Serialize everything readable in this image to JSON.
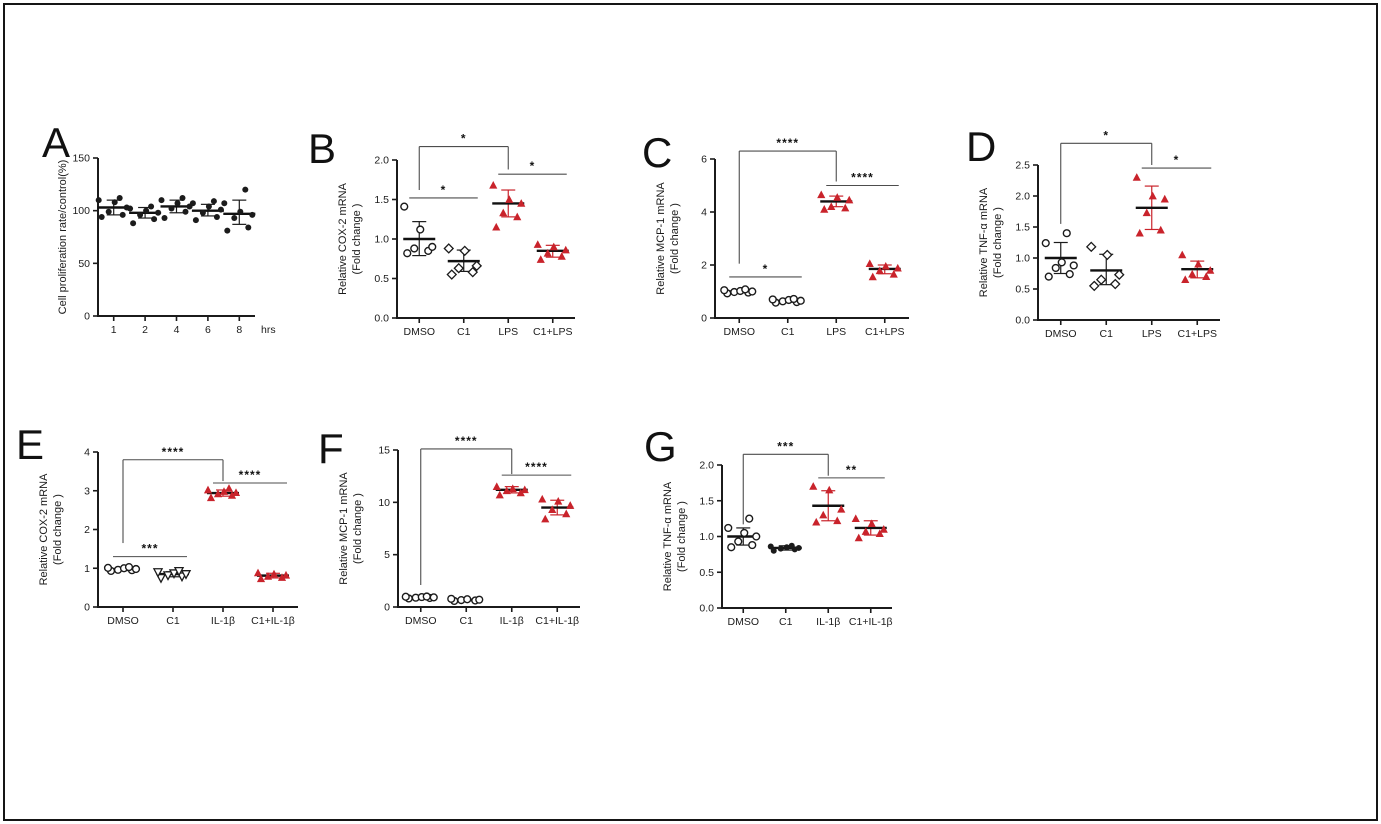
{
  "figure": {
    "background": "#ffffff",
    "frame_color": "#151515"
  },
  "colors": {
    "axis": "#1b1b1b",
    "point_black": "#1b1b1b",
    "point_red": "#c9232b",
    "mean_line": "#111111",
    "sig_line": "#4d4d4d",
    "star": "#111111"
  },
  "chart_data": [
    {
      "panel": "A",
      "type": "scatter",
      "ylabel_lines": [
        "Cell proliferation rate/control(%)"
      ],
      "ylim": [
        0,
        150
      ],
      "yticks": [
        0,
        50,
        100,
        150
      ],
      "ytick_labels": [
        "0",
        "50",
        "100",
        "150"
      ],
      "categories": [
        "1",
        "2",
        "4",
        "6",
        "8"
      ],
      "x_suffix": "hrs",
      "groups": [
        {
          "label": "1",
          "marker": "circle-filled",
          "color": "black",
          "points": [
            94,
            96,
            99,
            103,
            108,
            110,
            112
          ],
          "mean": 103,
          "err": [
            96,
            110
          ]
        },
        {
          "label": "2",
          "marker": "circle-filled",
          "color": "black",
          "points": [
            88,
            92,
            96,
            98,
            100,
            102,
            104
          ],
          "mean": 98,
          "err": [
            93,
            103
          ]
        },
        {
          "label": "4",
          "marker": "circle-filled",
          "color": "black",
          "points": [
            93,
            99,
            102,
            104,
            107,
            110,
            112
          ],
          "mean": 104,
          "err": [
            98,
            110
          ]
        },
        {
          "label": "6",
          "marker": "circle-filled",
          "color": "black",
          "points": [
            91,
            94,
            98,
            101,
            104,
            107,
            109
          ],
          "mean": 100,
          "err": [
            95,
            106
          ]
        },
        {
          "label": "8",
          "marker": "circle-filled",
          "color": "black",
          "points": [
            81,
            84,
            93,
            96,
            99,
            107,
            120
          ],
          "mean": 97,
          "err": [
            87,
            110
          ]
        }
      ],
      "significance": []
    },
    {
      "panel": "B",
      "type": "scatter",
      "ylabel_lines": [
        "Relative COX-2 mRNA",
        "(Fold change )"
      ],
      "ylim": [
        0,
        2.0
      ],
      "yticks": [
        0,
        0.5,
        1.0,
        1.5,
        2.0
      ],
      "ytick_labels": [
        "0.0",
        "0.5",
        "1.0",
        "1.5",
        "2.0"
      ],
      "categories": [
        "DMSO",
        "C1",
        "LPS",
        "C1+LPS"
      ],
      "x_suffix": "",
      "groups": [
        {
          "label": "DMSO",
          "marker": "circle-open",
          "color": "black",
          "points": [
            0.82,
            0.85,
            0.88,
            0.9,
            1.12,
            1.41
          ],
          "mean": 1.0,
          "err": [
            0.79,
            1.22
          ]
        },
        {
          "label": "C1",
          "marker": "diamond-open",
          "color": "black",
          "points": [
            0.55,
            0.58,
            0.63,
            0.66,
            0.85,
            0.88
          ],
          "mean": 0.72,
          "err": [
            0.59,
            0.86
          ]
        },
        {
          "label": "LPS",
          "marker": "triangle-filled",
          "color": "red",
          "points": [
            1.15,
            1.28,
            1.33,
            1.45,
            1.5,
            1.68
          ],
          "mean": 1.45,
          "err": [
            1.28,
            1.62
          ]
        },
        {
          "label": "C1+LPS",
          "marker": "triangle-filled",
          "color": "red",
          "points": [
            0.74,
            0.78,
            0.82,
            0.86,
            0.9,
            0.93
          ],
          "mean": 0.85,
          "err": [
            0.77,
            0.92
          ]
        }
      ],
      "significance": [
        {
          "a": 0,
          "b": 1,
          "y": 1.52,
          "label": "*"
        },
        {
          "a": 0,
          "b": 2,
          "y": 2.17,
          "da": 1.62,
          "db": 1.88,
          "label": "*"
        },
        {
          "a": 2,
          "b": 3,
          "y": 1.82,
          "label": "*"
        }
      ]
    },
    {
      "panel": "C",
      "type": "scatter",
      "ylabel_lines": [
        "Relative MCP-1 mRNA",
        "(Fold change )"
      ],
      "ylim": [
        0,
        6
      ],
      "yticks": [
        0,
        2,
        4,
        6
      ],
      "ytick_labels": [
        "0",
        "2",
        "4",
        "6"
      ],
      "categories": [
        "DMSO",
        "C1",
        "LPS",
        "C1+LPS"
      ],
      "x_suffix": "",
      "groups": [
        {
          "label": "DMSO",
          "marker": "circle-open",
          "color": "black",
          "points": [
            0.93,
            0.96,
            0.98,
            1.0,
            1.02,
            1.05,
            1.08
          ],
          "mean": 1.0,
          "err": [
            0.95,
            1.06
          ]
        },
        {
          "label": "C1",
          "marker": "circle-open",
          "color": "black",
          "points": [
            0.58,
            0.6,
            0.63,
            0.65,
            0.68,
            0.7,
            0.72
          ],
          "mean": 0.65,
          "err": [
            0.6,
            0.71
          ]
        },
        {
          "label": "LPS",
          "marker": "triangle-filled",
          "color": "red",
          "points": [
            4.1,
            4.15,
            4.2,
            4.45,
            4.55,
            4.65
          ],
          "mean": 4.4,
          "err": [
            4.2,
            4.6
          ]
        },
        {
          "label": "C1+LPS",
          "marker": "triangle-filled",
          "color": "red",
          "points": [
            1.55,
            1.65,
            1.78,
            1.88,
            1.95,
            2.05
          ],
          "mean": 1.85,
          "err": [
            1.67,
            2.0
          ]
        }
      ],
      "significance": [
        {
          "a": 0,
          "b": 1,
          "y": 1.55,
          "label": "*"
        },
        {
          "a": 0,
          "b": 2,
          "y": 6.3,
          "da": 2.05,
          "db": 5.15,
          "label": "****"
        },
        {
          "a": 2,
          "b": 3,
          "y": 5.0,
          "label": "****"
        }
      ]
    },
    {
      "panel": "D",
      "type": "scatter",
      "ylabel_lines": [
        "Relative TNF-α mRNA",
        "(Fold change )"
      ],
      "ylim": [
        0,
        2.5
      ],
      "yticks": [
        0,
        0.5,
        1.0,
        1.5,
        2.0,
        2.5
      ],
      "ytick_labels": [
        "0.0",
        "0.5",
        "1.0",
        "1.5",
        "2.0",
        "2.5"
      ],
      "categories": [
        "DMSO",
        "C1",
        "LPS",
        "C1+LPS"
      ],
      "x_suffix": "",
      "groups": [
        {
          "label": "DMSO",
          "marker": "circle-open",
          "color": "black",
          "points": [
            0.7,
            0.74,
            0.84,
            0.88,
            0.93,
            1.24,
            1.4
          ],
          "mean": 1.0,
          "err": [
            0.75,
            1.25
          ]
        },
        {
          "label": "C1",
          "marker": "diamond-open",
          "color": "black",
          "points": [
            0.55,
            0.58,
            0.65,
            0.73,
            1.05,
            1.18
          ],
          "mean": 0.8,
          "err": [
            0.57,
            1.06
          ]
        },
        {
          "label": "LPS",
          "marker": "triangle-filled",
          "color": "red",
          "points": [
            1.4,
            1.45,
            1.73,
            1.95,
            2.0,
            2.3
          ],
          "mean": 1.81,
          "err": [
            1.46,
            2.16
          ]
        },
        {
          "label": "C1+LPS",
          "marker": "triangle-filled",
          "color": "red",
          "points": [
            0.65,
            0.7,
            0.74,
            0.8,
            0.9,
            1.05
          ],
          "mean": 0.82,
          "err": [
            0.68,
            0.95
          ]
        }
      ],
      "significance": [
        {
          "a": 0,
          "b": 2,
          "y": 2.85,
          "da": 1.55,
          "db": 2.5,
          "label": "*"
        },
        {
          "a": 2,
          "b": 3,
          "y": 2.45,
          "label": "*"
        }
      ]
    },
    {
      "panel": "E",
      "type": "scatter",
      "ylabel_lines": [
        "Relative COX-2 mRNA",
        "(Fold change )"
      ],
      "ylim": [
        0,
        4
      ],
      "yticks": [
        0,
        1,
        2,
        3,
        4
      ],
      "ytick_labels": [
        "0",
        "1",
        "2",
        "3",
        "4"
      ],
      "categories": [
        "DMSO",
        "C1",
        "IL-1β",
        "C1+IL-1β"
      ],
      "x_suffix": "",
      "groups": [
        {
          "label": "DMSO",
          "marker": "circle-open",
          "color": "black",
          "points": [
            0.93,
            0.95,
            0.96,
            0.98,
            1.0,
            1.01,
            1.03
          ],
          "mean": 0.98,
          "err": [
            0.94,
            1.02
          ]
        },
        {
          "label": "C1",
          "marker": "triangle-open-down",
          "color": "black",
          "points": [
            0.75,
            0.79,
            0.82,
            0.85,
            0.87,
            0.9,
            0.93
          ],
          "mean": 0.85,
          "err": [
            0.78,
            0.91
          ]
        },
        {
          "label": "IL-1β",
          "marker": "triangle-filled",
          "color": "red",
          "points": [
            2.82,
            2.88,
            2.92,
            2.95,
            2.98,
            3.02,
            3.06
          ],
          "mean": 2.94,
          "err": [
            2.86,
            3.02
          ]
        },
        {
          "label": "C1+IL-1β",
          "marker": "triangle-filled",
          "color": "red",
          "points": [
            0.73,
            0.76,
            0.79,
            0.82,
            0.85,
            0.88
          ],
          "mean": 0.81,
          "err": [
            0.75,
            0.87
          ]
        }
      ],
      "significance": [
        {
          "a": 0,
          "b": 1,
          "y": 1.3,
          "label": "***"
        },
        {
          "a": 0,
          "b": 2,
          "y": 3.8,
          "da": 1.65,
          "db": 3.25,
          "label": "****"
        },
        {
          "a": 2,
          "b": 3,
          "y": 3.2,
          "label": "****"
        }
      ]
    },
    {
      "panel": "F",
      "type": "scatter",
      "ylabel_lines": [
        "Relative MCP-1 mRNA",
        "(Fold change )"
      ],
      "ylim": [
        0,
        15
      ],
      "yticks": [
        0,
        5,
        10,
        15
      ],
      "ytick_labels": [
        "0",
        "5",
        "10",
        "15"
      ],
      "categories": [
        "DMSO",
        "C1",
        "IL-1β",
        "C1+IL-1β"
      ],
      "x_suffix": "",
      "groups": [
        {
          "label": "DMSO",
          "marker": "circle-open",
          "color": "black",
          "points": [
            0.82,
            0.86,
            0.89,
            0.92,
            0.95,
            0.98,
            1.0
          ],
          "mean": 0.92,
          "err": [
            0.85,
            1.0
          ]
        },
        {
          "label": "C1",
          "marker": "circle-open",
          "color": "black",
          "points": [
            0.58,
            0.62,
            0.66,
            0.7,
            0.74,
            0.78
          ],
          "mean": 0.68,
          "err": [
            0.6,
            0.76
          ]
        },
        {
          "label": "IL-1β",
          "marker": "triangle-filled",
          "color": "red",
          "points": [
            10.7,
            10.9,
            11.1,
            11.2,
            11.3,
            11.5
          ],
          "mean": 11.2,
          "err": [
            10.9,
            11.5
          ]
        },
        {
          "label": "C1+IL-1β",
          "marker": "triangle-filled",
          "color": "red",
          "points": [
            8.4,
            8.9,
            9.3,
            9.7,
            10.1,
            10.3
          ],
          "mean": 9.5,
          "err": [
            8.8,
            10.2
          ]
        }
      ],
      "significance": [
        {
          "a": 0,
          "b": 2,
          "y": 15.1,
          "da": 2.1,
          "db": 12.7,
          "label": "****"
        },
        {
          "a": 2,
          "b": 3,
          "y": 12.6,
          "label": "****"
        }
      ]
    },
    {
      "panel": "G",
      "type": "scatter",
      "ylabel_lines": [
        "Relative TNF-α mRNA",
        "(Fold change )"
      ],
      "ylim": [
        0,
        2.0
      ],
      "yticks": [
        0,
        0.5,
        1.0,
        1.5,
        2.0
      ],
      "ytick_labels": [
        "0.0",
        "0.5",
        "1.0",
        "1.5",
        "2.0"
      ],
      "categories": [
        "DMSO",
        "C1",
        "IL-1β",
        "C1+IL-1β"
      ],
      "x_suffix": "",
      "groups": [
        {
          "label": "DMSO",
          "marker": "circle-open",
          "color": "black",
          "points": [
            0.85,
            0.88,
            0.93,
            1.0,
            1.05,
            1.12,
            1.25
          ],
          "mean": 1.0,
          "err": [
            0.88,
            1.12
          ]
        },
        {
          "label": "C1",
          "marker": "circle-filled",
          "color": "black",
          "points": [
            0.8,
            0.82,
            0.83,
            0.84,
            0.85,
            0.86,
            0.87
          ],
          "mean": 0.84,
          "err": [
            0.81,
            0.87
          ]
        },
        {
          "label": "IL-1β",
          "marker": "triangle-filled",
          "color": "red",
          "points": [
            1.2,
            1.22,
            1.3,
            1.38,
            1.65,
            1.7
          ],
          "mean": 1.43,
          "err": [
            1.22,
            1.64
          ]
        },
        {
          "label": "C1+IL-1β",
          "marker": "triangle-filled",
          "color": "red",
          "points": [
            0.98,
            1.04,
            1.07,
            1.1,
            1.18,
            1.25
          ],
          "mean": 1.12,
          "err": [
            1.02,
            1.22
          ]
        }
      ],
      "significance": [
        {
          "a": 0,
          "b": 2,
          "y": 2.15,
          "da": 1.17,
          "db": 1.85,
          "label": "***"
        },
        {
          "a": 2,
          "b": 3,
          "y": 1.82,
          "label": "**"
        }
      ]
    }
  ]
}
